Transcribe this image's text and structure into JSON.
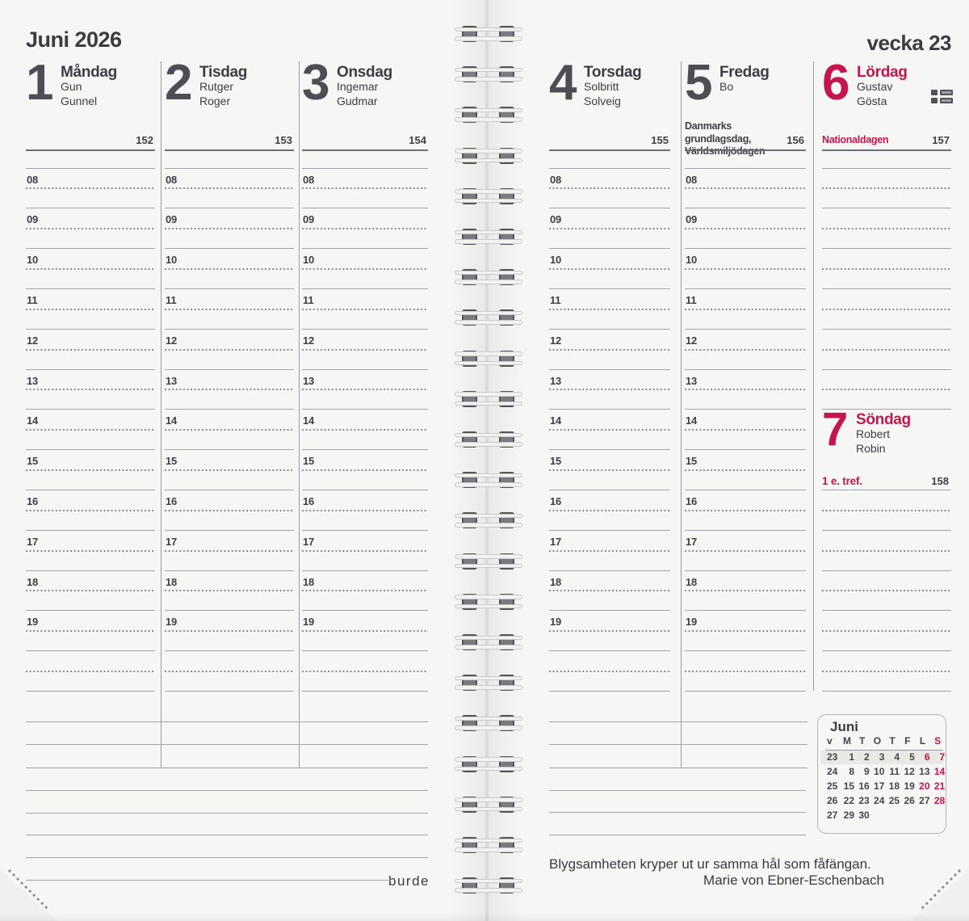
{
  "header": {
    "month_title": "Juni 2026",
    "week_label": "vecka 23"
  },
  "hours": [
    "08",
    "09",
    "10",
    "11",
    "12",
    "13",
    "14",
    "15",
    "16",
    "17",
    "18",
    "19"
  ],
  "days": [
    {
      "number": "1",
      "name": "Måndag",
      "name_days": [
        "Gun",
        "Gunnel"
      ],
      "day_of_year": "152"
    },
    {
      "number": "2",
      "name": "Tisdag",
      "name_days": [
        "Rutger",
        "Roger"
      ],
      "day_of_year": "153"
    },
    {
      "number": "3",
      "name": "Onsdag",
      "name_days": [
        "Ingemar",
        "Gudmar"
      ],
      "day_of_year": "154"
    },
    {
      "number": "4",
      "name": "Torsdag",
      "name_days": [
        "Solbritt",
        "Solveig"
      ],
      "day_of_year": "155"
    },
    {
      "number": "5",
      "name": "Fredag",
      "name_days": [
        "Bo"
      ],
      "day_of_year": "156",
      "holidays": [
        "Danmarks grundlagsdag,",
        "Världsmiljödagen"
      ]
    },
    {
      "number": "6",
      "name": "Lördag",
      "name_days": [
        "Gustav",
        "Gösta"
      ],
      "day_of_year": "157",
      "holiday_red": "Nationaldagen",
      "red": true,
      "flag_icon": true
    },
    {
      "number": "7",
      "name": "Söndag",
      "name_days": [
        "Robert",
        "Robin"
      ],
      "day_of_year": "158",
      "note_red": "1 e. tref.",
      "red": true
    }
  ],
  "mini_calendar": {
    "title": "Juni",
    "col_headers": [
      "v",
      "M",
      "T",
      "O",
      "T",
      "F",
      "L",
      "S"
    ],
    "red_header_indices": [
      7
    ],
    "weeks": [
      {
        "week": "23",
        "days": [
          "1",
          "2",
          "3",
          "4",
          "5",
          "6",
          "7"
        ],
        "red_days": [
          "6",
          "7"
        ],
        "highlight": true
      },
      {
        "week": "24",
        "days": [
          "8",
          "9",
          "10",
          "11",
          "12",
          "13",
          "14"
        ],
        "red_days": [
          "14"
        ],
        "highlight": false
      },
      {
        "week": "25",
        "days": [
          "15",
          "16",
          "17",
          "18",
          "19",
          "20",
          "21"
        ],
        "red_days": [
          "20",
          "21"
        ],
        "highlight": false
      },
      {
        "week": "26",
        "days": [
          "22",
          "23",
          "24",
          "25",
          "26",
          "27",
          "28"
        ],
        "red_days": [
          "28"
        ],
        "highlight": false
      },
      {
        "week": "27",
        "days": [
          "29",
          "30"
        ],
        "red_days": [],
        "highlight": false
      }
    ]
  },
  "quote": {
    "text": "Blygsamheten kryper ut ur samma hål som fåfängan.",
    "author": "Marie von Ebner-Eschenbach"
  },
  "logo_text": "burde",
  "colors": {
    "accent_red": "#c4164d",
    "ink": "#45454d",
    "line_gray": "#a4a4aa"
  }
}
